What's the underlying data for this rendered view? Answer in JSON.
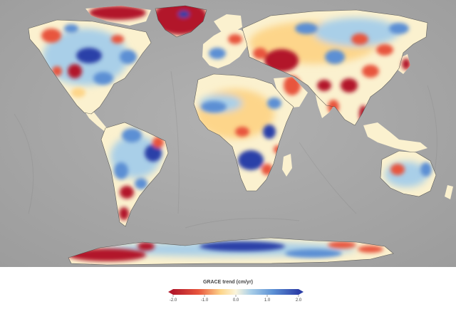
{
  "legend": {
    "title": "GRACE trend (cm/yr)",
    "ticks": [
      "-2.0",
      "-1.0",
      "0.0",
      "1.0",
      "2.0"
    ],
    "range": [
      -2.0,
      2.0
    ],
    "colors": {
      "strong_negative": "#b2182b",
      "negative": "#e8553d",
      "weak_negative": "#fdd58a",
      "neutral": "#fbf5dc",
      "weak_positive": "#a9cfe8",
      "positive": "#5b8fd4",
      "strong_positive": "#2c3fa8"
    }
  },
  "map": {
    "ocean_color": "#a7a7a7",
    "land_base_color": "#fbf1cf"
  }
}
